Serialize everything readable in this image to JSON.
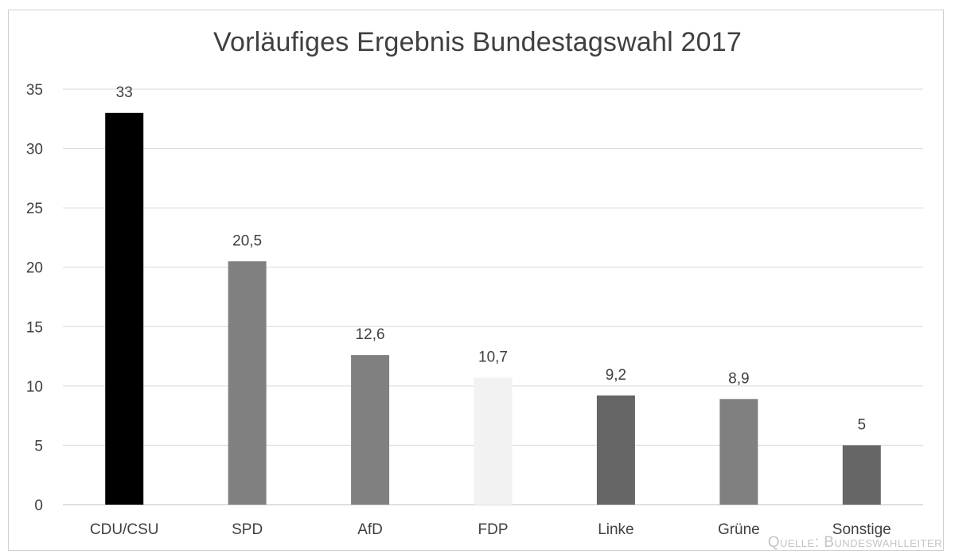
{
  "chart_data": {
    "type": "bar",
    "title": "Vorläufiges Ergebnis Bundestagswahl 2017",
    "categories": [
      "CDU/CSU",
      "SPD",
      "AfD",
      "FDP",
      "Linke",
      "Grüne",
      "Sonstige"
    ],
    "values": [
      33,
      20.5,
      12.6,
      10.7,
      9.2,
      8.9,
      5
    ],
    "value_labels": [
      "33",
      "20,5",
      "12,6",
      "10,7",
      "9,2",
      "8,9",
      "5"
    ],
    "bar_colors": [
      "#000000",
      "#808080",
      "#808080",
      "#f2f2f2",
      "#666666",
      "#808080",
      "#666666"
    ],
    "ylim": [
      0,
      35
    ],
    "yticks": [
      0,
      5,
      10,
      15,
      20,
      25,
      30,
      35
    ],
    "grid": true,
    "legend": "none",
    "xlabel": "",
    "ylabel": ""
  },
  "source": "Quelle: Bundeswahlleiter",
  "colors": {
    "grid": "#d9d9d9",
    "axis": "#bfbfbf",
    "text": "#404040",
    "source": "#c4c4c4"
  }
}
